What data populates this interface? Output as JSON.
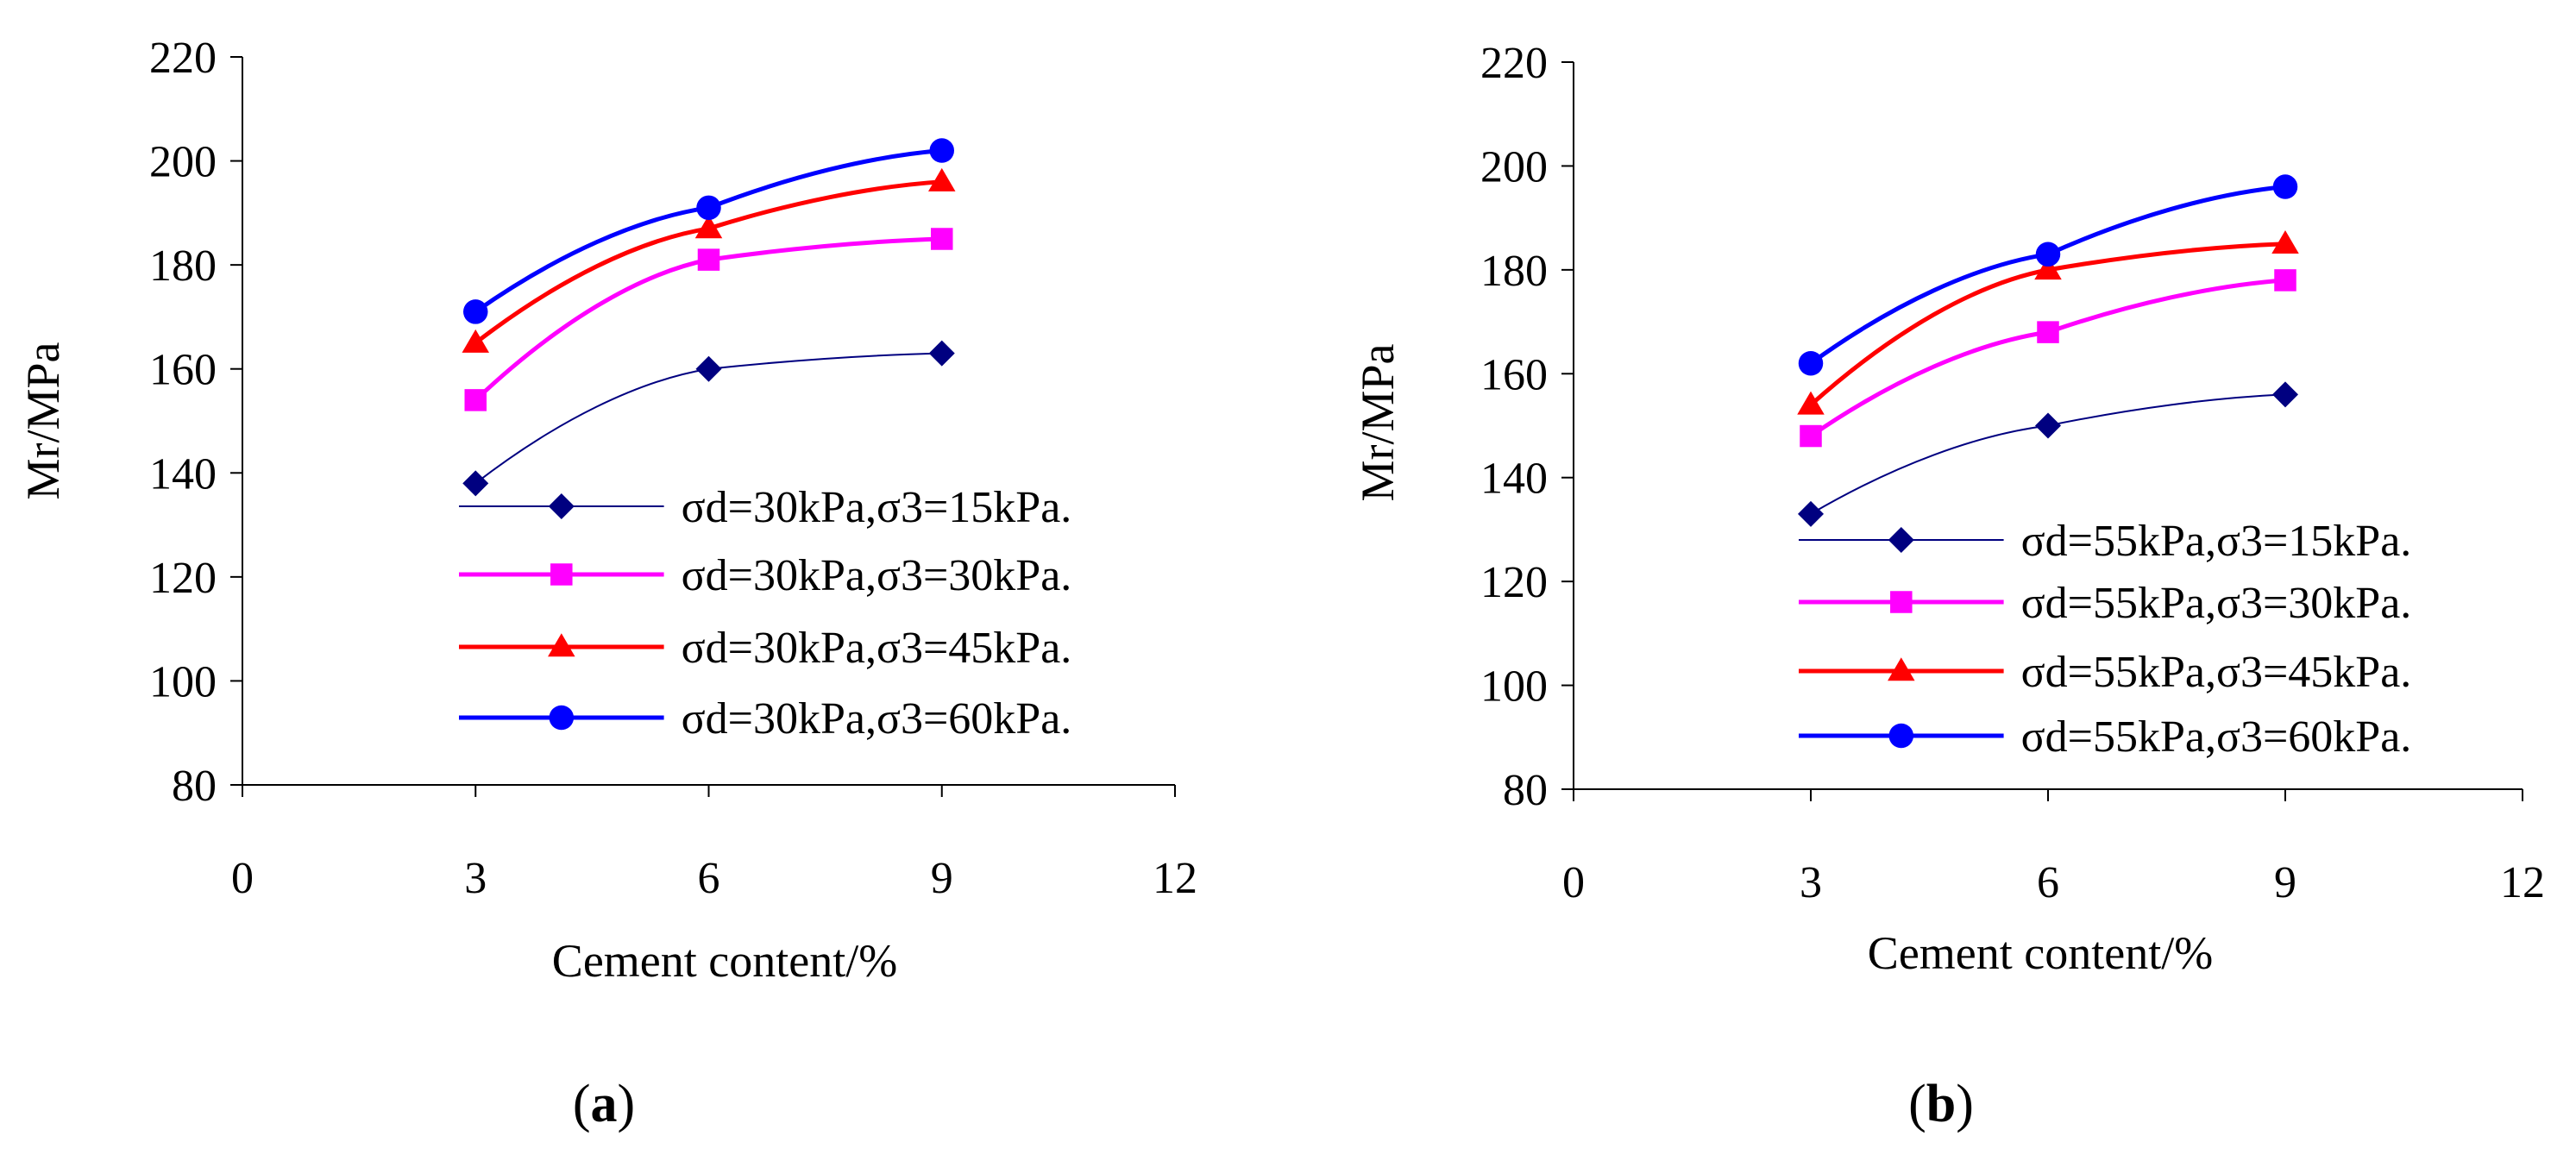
{
  "chart_data": [
    {
      "type": "line",
      "panel_label": "(a)",
      "xlabel": "Cement content/%",
      "ylabel": "Mr/MPa",
      "xlim": [
        0,
        12
      ],
      "ylim": [
        80,
        220
      ],
      "xticks": [
        "0",
        "3",
        "6",
        "9",
        "12"
      ],
      "yticks": [
        "80",
        "100",
        "120",
        "140",
        "160",
        "180",
        "200",
        "220"
      ],
      "grid": false,
      "legend_position": "bottom-right inside plot",
      "series": [
        {
          "name": "σd=30kPa,σ3=15kPa.",
          "x": [
            3,
            6,
            9
          ],
          "values": [
            138,
            160,
            163
          ],
          "color": "#000080",
          "marker": "diamond"
        },
        {
          "name": "σd=30kPa,σ3=30kPa.",
          "x": [
            3,
            6,
            9
          ],
          "values": [
            154,
            181,
            185
          ],
          "color": "#FF00FF",
          "marker": "square"
        },
        {
          "name": "σd=30kPa,σ3=45kPa.",
          "x": [
            3,
            6,
            9
          ],
          "values": [
            165,
            187,
            196
          ],
          "color": "#FF0000",
          "marker": "triangle"
        },
        {
          "name": "σd=30kPa,σ3=60kPa.",
          "x": [
            3,
            6,
            9
          ],
          "values": [
            171,
            191,
            202
          ],
          "color": "#0000FF",
          "marker": "circle"
        }
      ]
    },
    {
      "type": "line",
      "panel_label": "(b)",
      "xlabel": "Cement content/%",
      "ylabel": "Mr/MPa",
      "xlim": [
        0,
        12
      ],
      "ylim": [
        80,
        220
      ],
      "xticks": [
        "0",
        "3",
        "6",
        "9",
        "12"
      ],
      "yticks": [
        "80",
        "100",
        "120",
        "140",
        "160",
        "180",
        "200",
        "220"
      ],
      "grid": false,
      "legend_position": "bottom-right inside plot",
      "series": [
        {
          "name": "σd=55kPa,σ3=15kPa.",
          "x": [
            3,
            6,
            9
          ],
          "values": [
            133,
            150,
            156
          ],
          "color": "#000080",
          "marker": "diamond"
        },
        {
          "name": "σd=55kPa,σ3=30kPa.",
          "x": [
            3,
            6,
            9
          ],
          "values": [
            148,
            168,
            178
          ],
          "color": "#FF00FF",
          "marker": "square"
        },
        {
          "name": "σd=55kPa,σ3=45kPa.",
          "x": [
            3,
            6,
            9
          ],
          "values": [
            154,
            180,
            185
          ],
          "color": "#FF0000",
          "marker": "triangle"
        },
        {
          "name": "σd=55kPa,σ3=60kPa.",
          "x": [
            3,
            6,
            9
          ],
          "values": [
            162,
            183,
            196
          ],
          "color": "#0000FF",
          "marker": "circle"
        }
      ]
    }
  ]
}
